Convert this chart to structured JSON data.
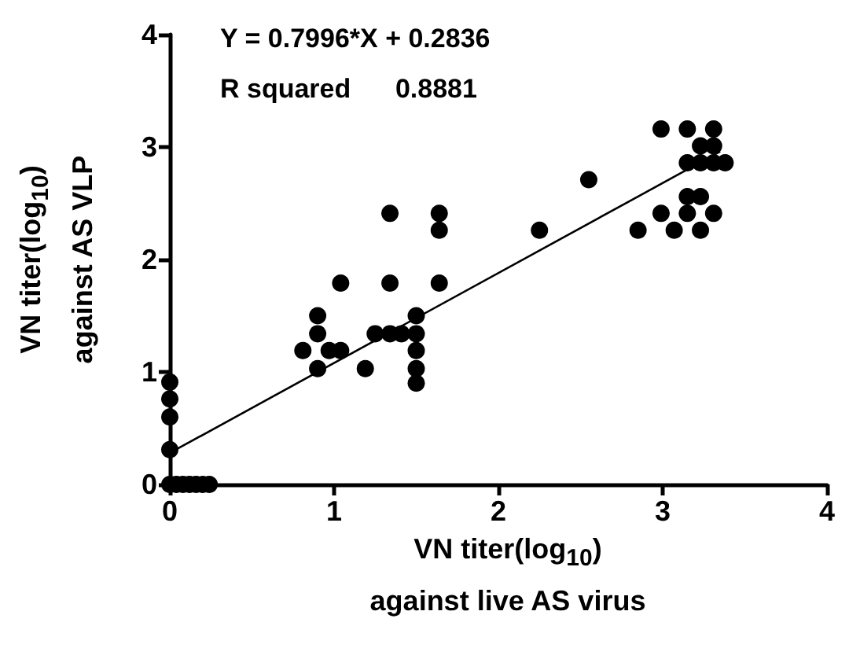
{
  "chart_data": {
    "type": "scatter",
    "xlabel": "VN titer(log$_{10}$)\nagainst live AS virus",
    "ylabel": "VN titer(log$_{10}$)\nagainst AS VLP",
    "annotations": [
      "Y = 0.7996*X + 0.2836",
      "R squared      0.8881"
    ],
    "xlim": [
      0,
      4
    ],
    "xticks": [
      0,
      1,
      2,
      3,
      4
    ],
    "ylim": [
      0,
      4
    ],
    "yticks": [
      0,
      1,
      2,
      3,
      4
    ],
    "grid": false,
    "marker": "circle",
    "series": [
      {
        "color": "#000000",
        "x": [
          0,
          0,
          0,
          0,
          0,
          0.04,
          0.08,
          0.12,
          0.16,
          0.2,
          0.24,
          0.81,
          0.9,
          0.9,
          0.9,
          0.97,
          1.04,
          1.04,
          1.19,
          1.25,
          1.34,
          1.34,
          1.34,
          1.41,
          1.5,
          1.5,
          1.5,
          1.5,
          1.5,
          1.64,
          1.64,
          1.64,
          2.25,
          2.55,
          2.85,
          2.99,
          2.99,
          3.07,
          3.15,
          3.15,
          3.15,
          3.15,
          3.23,
          3.23,
          3.23,
          3.23,
          3.31,
          3.31,
          3.31,
          3.31,
          3.38
        ],
        "values": [
          0.91,
          0.76,
          0.6,
          0.31,
          0,
          0,
          0,
          0,
          0,
          0,
          0,
          1.19,
          1.5,
          1.34,
          1.03,
          1.19,
          1.19,
          1.79,
          1.03,
          1.34,
          1.34,
          1.79,
          2.41,
          1.34,
          1.5,
          1.34,
          1.19,
          1.03,
          0.9,
          1.79,
          2.26,
          2.41,
          2.26,
          2.71,
          2.26,
          2.41,
          3.16,
          2.26,
          2.41,
          2.56,
          2.86,
          3.16,
          2.26,
          2.56,
          2.86,
          3.01,
          2.41,
          2.86,
          3.01,
          3.16,
          2.86
        ]
      },
      {
        "type": "line",
        "color": "#000000",
        "marker": "none",
        "line_style": "solid",
        "x": [
          0,
          3.35
        ],
        "values": [
          0.28,
          2.96
        ]
      }
    ]
  }
}
